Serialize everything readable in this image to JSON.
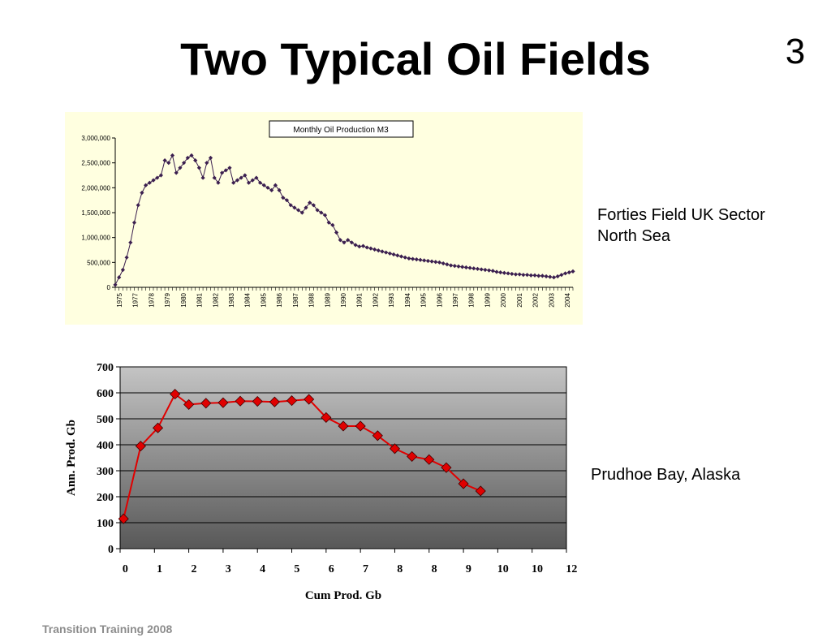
{
  "slide": {
    "title": "Two Typical Oil Fields",
    "number": "3",
    "footer": "Transition Training 2008"
  },
  "chart_data": [
    {
      "type": "line",
      "title": "Monthly Oil Production M3",
      "caption_lines": [
        "Forties Field UK Sector",
        "North Sea"
      ],
      "xlabel": "",
      "ylabel": "",
      "x_range": [
        1975,
        2005
      ],
      "ylim": [
        0,
        3000000
      ],
      "y_ticks": [
        0,
        500000,
        1000000,
        1500000,
        2000000,
        2500000,
        3000000
      ],
      "y_tick_labels": [
        "0",
        "500,000",
        "1,000,000",
        "1,500,000",
        "2,000,000",
        "2,500,000",
        "3,000,000"
      ],
      "x_tick_labels": [
        "1975",
        "1977",
        "1978",
        "1979",
        "1980",
        "1981",
        "1982",
        "1983",
        "1984",
        "1985",
        "1986",
        "1987",
        "1988",
        "1989",
        "1990",
        "1991",
        "1992",
        "1993",
        "1994",
        "1995",
        "1996",
        "1997",
        "1998",
        "1999",
        "2000",
        "2001",
        "2002",
        "2003",
        "2004"
      ],
      "legend": "none",
      "grid": false,
      "colors": {
        "series": "#3b1f4f",
        "background": "#ffffe0"
      },
      "series": [
        {
          "x": [
            1975.0,
            1975.25,
            1975.5,
            1975.75,
            1976.0,
            1976.25,
            1976.5,
            1976.75,
            1977.0,
            1977.25,
            1977.5,
            1977.75,
            1978.0,
            1978.25,
            1978.5,
            1978.75,
            1979.0,
            1979.25,
            1979.5,
            1979.75,
            1980.0,
            1980.25,
            1980.5,
            1980.75,
            1981.0,
            1981.25,
            1981.5,
            1981.75,
            1982.0,
            1982.25,
            1982.5,
            1982.75,
            1983.0,
            1983.25,
            1983.5,
            1983.75,
            1984.0,
            1984.25,
            1984.5,
            1984.75,
            1985.0,
            1985.25,
            1985.5,
            1985.75,
            1986.0,
            1986.25,
            1986.5,
            1986.75,
            1987.0,
            1987.25,
            1987.5,
            1987.75,
            1988.0,
            1988.25,
            1988.5,
            1988.75,
            1989.0,
            1989.25,
            1989.5,
            1989.75,
            1990.0,
            1990.25,
            1990.5,
            1990.75,
            1991.0,
            1991.25,
            1991.5,
            1991.75,
            1992.0,
            1992.25,
            1992.5,
            1992.75,
            1993.0,
            1993.25,
            1993.5,
            1993.75,
            1994.0,
            1994.25,
            1994.5,
            1994.75,
            1995.0,
            1995.25,
            1995.5,
            1995.75,
            1996.0,
            1996.25,
            1996.5,
            1996.75,
            1997.0,
            1997.25,
            1997.5,
            1997.75,
            1998.0,
            1998.25,
            1998.5,
            1998.75,
            1999.0,
            1999.25,
            1999.5,
            1999.75,
            2000.0,
            2000.25,
            2000.5,
            2000.75,
            2001.0,
            2001.25,
            2001.5,
            2001.75,
            2002.0,
            2002.25,
            2002.5,
            2002.75,
            2003.0,
            2003.25,
            2003.5,
            2003.75,
            2004.0,
            2004.25,
            2004.5,
            2004.75,
            2005.0
          ],
          "values": [
            50000,
            200000,
            350000,
            600000,
            900000,
            1300000,
            1650000,
            1900000,
            2050000,
            2100000,
            2150000,
            2200000,
            2250000,
            2550000,
            2500000,
            2650000,
            2300000,
            2400000,
            2500000,
            2600000,
            2650000,
            2550000,
            2400000,
            2200000,
            2500000,
            2600000,
            2200000,
            2100000,
            2300000,
            2350000,
            2400000,
            2100000,
            2150000,
            2200000,
            2250000,
            2100000,
            2150000,
            2200000,
            2100000,
            2050000,
            2000000,
            1950000,
            2050000,
            1950000,
            1800000,
            1750000,
            1650000,
            1600000,
            1550000,
            1500000,
            1600000,
            1700000,
            1650000,
            1550000,
            1500000,
            1450000,
            1300000,
            1250000,
            1100000,
            950000,
            900000,
            950000,
            900000,
            850000,
            820000,
            830000,
            800000,
            780000,
            760000,
            740000,
            720000,
            700000,
            680000,
            660000,
            640000,
            620000,
            600000,
            580000,
            570000,
            560000,
            550000,
            540000,
            530000,
            520000,
            510000,
            500000,
            480000,
            460000,
            440000,
            430000,
            420000,
            410000,
            400000,
            390000,
            380000,
            370000,
            360000,
            350000,
            340000,
            330000,
            310000,
            300000,
            290000,
            280000,
            270000,
            260000,
            260000,
            250000,
            250000,
            240000,
            240000,
            230000,
            230000,
            220000,
            210000,
            200000,
            220000,
            250000,
            280000,
            300000,
            320000
          ]
        }
      ]
    },
    {
      "type": "line",
      "title": "",
      "caption": "Prudhoe Bay, Alaska",
      "xlabel": "Cum Prod. Gb",
      "ylabel": "Ann. Prod. Gb",
      "xlim": [
        0,
        13
      ],
      "ylim": [
        0,
        700
      ],
      "y_ticks": [
        0,
        100,
        200,
        300,
        400,
        500,
        600,
        700
      ],
      "x_tick_labels": [
        "0",
        "1",
        "2",
        "3",
        "4",
        "5",
        "6",
        "7",
        "8",
        "8",
        "9",
        "10",
        "10",
        "12"
      ],
      "legend": "none",
      "grid": true,
      "colors": {
        "series": "#e00000",
        "marker": "#e00000",
        "plot_bg_top": "#c0c0c0",
        "plot_bg_bottom": "#5a5a5a"
      },
      "series": [
        {
          "x": [
            0.1,
            0.6,
            1.1,
            1.6,
            2.0,
            2.5,
            3.0,
            3.5,
            4.0,
            4.5,
            5.0,
            5.5,
            6.0,
            6.5,
            7.0,
            7.5,
            8.0,
            8.5,
            9.0,
            9.5,
            10.0,
            10.5
          ],
          "values": [
            115,
            395,
            465,
            595,
            555,
            560,
            562,
            568,
            567,
            565,
            570,
            575,
            505,
            472,
            472,
            435,
            385,
            355,
            343,
            312,
            250,
            222
          ]
        }
      ]
    }
  ]
}
